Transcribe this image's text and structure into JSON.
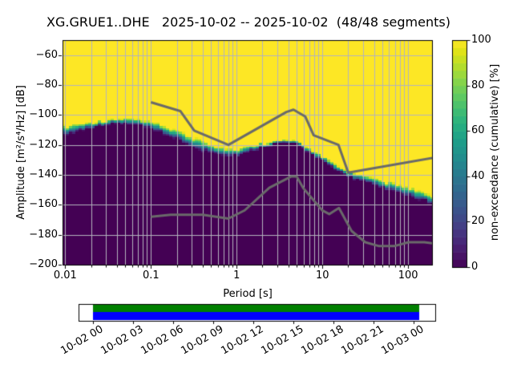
{
  "figure": {
    "title": "XG.GRUE1..DHE   2025-10-02 -- 2025-10-02  (48/48 segments)",
    "station_id": "XG.GRUE1..DHE",
    "date_start": "2025-10-02",
    "date_end": "2025-10-02",
    "segments": "48/48 segments"
  },
  "chart_data": {
    "type": "heatmap",
    "subtype": "ppsd-cumulative-histogram",
    "title": "XG.GRUE1..DHE   2025-10-02 -- 2025-10-02  (48/48 segments)",
    "xlabel": "Period [s]",
    "ylabel": "Amplitude [m²/s⁴/Hz] [dB]",
    "xscale": "log",
    "xlim": [
      0.0093,
      190
    ],
    "ylim": [
      -200,
      -50
    ],
    "grid": true,
    "xticks": [
      0.01,
      0.1,
      1,
      10,
      100
    ],
    "xtick_labels": [
      "0.01",
      "0.1",
      "1",
      "10",
      "100"
    ],
    "yticks": [
      -60,
      -80,
      -100,
      -120,
      -140,
      -160,
      -180,
      -200
    ],
    "ytick_labels": [
      "−60",
      "−80",
      "−100",
      "−120",
      "−140",
      "−160",
      "−180",
      "−200"
    ],
    "bins": {
      "db_step": 1.25,
      "period_step_octaves": 0.125
    },
    "colors": {
      "background": "#ffffff",
      "grid": "#b3b3bd",
      "low": "#440154",
      "high": "#fde725",
      "noise_model_line": "#6a6a6a",
      "coverage_green": "#008000",
      "coverage_blue": "#0000ff"
    },
    "colorbar": {
      "label": "non-exceedance (cumulative) [%]",
      "ticks": [
        0,
        20,
        40,
        60,
        80,
        100
      ],
      "tick_labels": [
        "0",
        "20",
        "40",
        "60",
        "80",
        "100"
      ],
      "levels": 30,
      "cmap": "viridis",
      "viridis_stops": [
        "#440154",
        "#471365",
        "#482475",
        "#463480",
        "#414487",
        "#3b528b",
        "#355f8d",
        "#2f6c8e",
        "#2a788e",
        "#25848e",
        "#21918c",
        "#1e9c89",
        "#22a884",
        "#2fb47c",
        "#44bf70",
        "#5ec962",
        "#7ad151",
        "#9bd93c",
        "#bddf26",
        "#dfe318",
        "#fde725"
      ]
    },
    "cumulative_boundary": {
      "description": "50% non-exceedance level vs period; yellow (100%) above, dark purple (0%) below, narrow viridis transition band",
      "periods": [
        0.0093,
        0.013,
        0.019,
        0.028,
        0.04,
        0.05,
        0.065,
        0.08,
        0.1,
        0.14,
        0.2,
        0.3,
        0.4,
        0.55,
        0.75,
        1.0,
        1.3,
        1.8,
        2.5,
        3.5,
        4.5,
        5.5,
        7.0,
        8.5,
        10.0,
        14.0,
        20.0,
        28.0,
        40.0,
        60.0,
        85.0,
        120.0,
        190.0
      ],
      "db_50pct": [
        -111.0,
        -108.8,
        -107.0,
        -105.4,
        -104.3,
        -104.3,
        -104.8,
        -105.8,
        -107.5,
        -110.0,
        -113.5,
        -118.0,
        -120.8,
        -123.0,
        -124.5,
        -125.2,
        -123.5,
        -121.0,
        -118.8,
        -117.8,
        -118.3,
        -120.0,
        -123.8,
        -126.5,
        -129.3,
        -135.0,
        -139.3,
        -142.0,
        -144.8,
        -147.8,
        -150.3,
        -153.0,
        -157.0
      ],
      "transition_halfwidth_db": [
        3.0,
        2.4,
        2.0,
        1.6,
        1.4,
        1.4,
        1.5,
        1.7,
        2.0,
        2.3,
        2.6,
        2.8,
        2.8,
        2.6,
        2.2,
        1.8,
        1.5,
        1.2,
        1.0,
        1.0,
        1.0,
        1.2,
        1.4,
        1.5,
        1.6,
        1.6,
        1.6,
        1.8,
        2.0,
        2.2,
        2.4,
        2.6,
        2.8
      ]
    },
    "noise_models": {
      "description": "Peterson NHNM / NLNM reference curves (gray lines)",
      "nhnm": {
        "periods": [
          0.1,
          0.22,
          0.32,
          0.8,
          3.8,
          4.6,
          6.3,
          7.9,
          15.4,
          20.0,
          354.8
        ],
        "db": [
          -91.5,
          -97.4,
          -110.5,
          -120.0,
          -98.0,
          -96.5,
          -101.0,
          -113.5,
          -120.0,
          -138.5,
          -126.0
        ]
      },
      "nlnm": {
        "periods": [
          0.1,
          0.17,
          0.4,
          0.8,
          1.24,
          2.4,
          4.3,
          5.0,
          6.0,
          10.0,
          12.0,
          15.6,
          21.9,
          31.6,
          45.0,
          70.0,
          101.0,
          154.0,
          328.0
        ],
        "db": [
          -168.0,
          -166.7,
          -166.7,
          -169.2,
          -163.7,
          -148.6,
          -141.1,
          -141.1,
          -149.0,
          -163.8,
          -166.2,
          -162.1,
          -177.5,
          -185.0,
          -187.5,
          -187.5,
          -185.0,
          -185.0,
          -187.5
        ]
      }
    },
    "coverage_timeline": {
      "tick_labels": [
        "10-02 00",
        "10-02 03",
        "10-02 06",
        "10-02 09",
        "10-02 12",
        "10-02 15",
        "10-02 18",
        "10-02 21",
        "10-03 00"
      ],
      "bars": [
        {
          "name": "coverage-bar-green",
          "color": "#008000"
        },
        {
          "name": "coverage-bar-blue",
          "color": "#0000ff"
        }
      ]
    }
  }
}
